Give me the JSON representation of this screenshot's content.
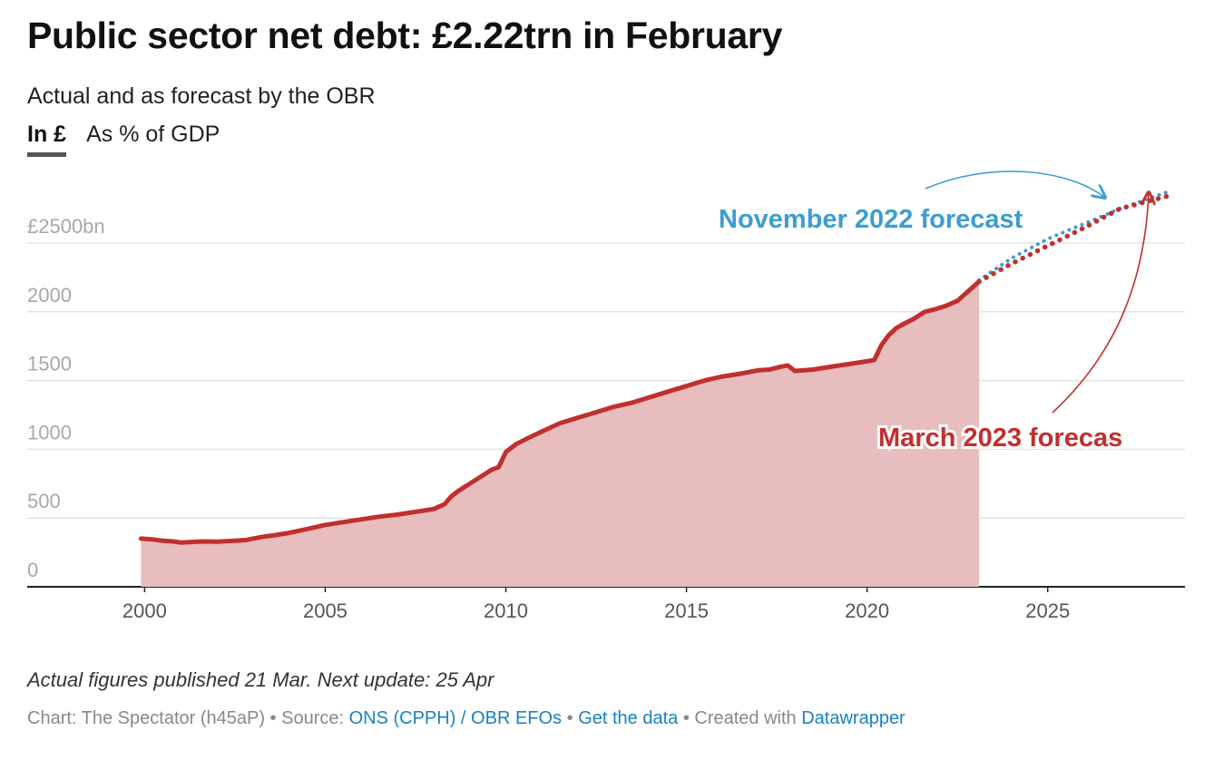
{
  "header": {
    "title": "Public sector net debt: £2.22trn in February",
    "subtitle": "Actual and as forecast by the OBR",
    "tabs": [
      {
        "label": "In £",
        "active": true
      },
      {
        "label": "As % of GDP",
        "active": false
      }
    ]
  },
  "footer": {
    "note": "Actual figures published 21 Mar. Next update: 25 Apr",
    "credit_prefix": "Chart: The Spectator (h45aP) • Source: ",
    "source_link": "ONS (CPPH) / OBR EFOs",
    "separator": " • ",
    "data_link": "Get the data",
    "created_prefix": " • Created with ",
    "tool_link": "Datawrapper"
  },
  "chart_data": {
    "type": "area",
    "title": "Public sector net debt: £2.22trn in February",
    "subtitle": "Actual and as forecast by the OBR",
    "xlabel": "",
    "ylabel": "",
    "xlim": [
      1996.75,
      2028.8
    ],
    "ylim": [
      0,
      2500
    ],
    "y_ticks": [
      {
        "value": 0,
        "label": "0"
      },
      {
        "value": 500,
        "label": "500"
      },
      {
        "value": 1000,
        "label": "1000"
      },
      {
        "value": 1500,
        "label": "1500"
      },
      {
        "value": 2000,
        "label": "2000"
      },
      {
        "value": 2500,
        "label": "£2500bn"
      }
    ],
    "x_ticks": [
      {
        "value": 2000,
        "label": "2000"
      },
      {
        "value": 2005,
        "label": "2005"
      },
      {
        "value": 2010,
        "label": "2010"
      },
      {
        "value": 2015,
        "label": "2015"
      },
      {
        "value": 2020,
        "label": "2020"
      },
      {
        "value": 2025,
        "label": "2025"
      }
    ],
    "grid": true,
    "colors": {
      "actual": "#c0302e",
      "area": "#e7bdbd",
      "november_forecast": "#3d9dd1",
      "march_forecast": "#c0302e",
      "grid": "#e3e3e3",
      "axis": "#222222"
    },
    "series": [
      {
        "style": "solid-area",
        "x": [
          1999.9,
          2000.2,
          2000.5,
          2000.8,
          2001.0,
          2001.3,
          2001.6,
          2002.0,
          2002.4,
          2002.8,
          2003.0,
          2003.3,
          2003.6,
          2004.0,
          2004.5,
          2005.0,
          2005.5,
          2006.0,
          2006.5,
          2007.0,
          2007.5,
          2008.0,
          2008.3,
          2008.5,
          2008.7,
          2009.0,
          2009.3,
          2009.6,
          2009.8,
          2010.0,
          2010.3,
          2010.6,
          2011.0,
          2011.5,
          2012.0,
          2012.5,
          2013.0,
          2013.5,
          2014.0,
          2014.5,
          2015.0,
          2015.5,
          2016.0,
          2016.5,
          2017.0,
          2017.3,
          2017.6,
          2017.8,
          2018.0,
          2018.5,
          2019.0,
          2019.5,
          2020.0,
          2020.2,
          2020.4,
          2020.6,
          2020.8,
          2021.0,
          2021.3,
          2021.6,
          2021.9,
          2022.2,
          2022.5,
          2022.8,
          2023.1
        ],
        "values": [
          350,
          345,
          335,
          330,
          322,
          326,
          330,
          328,
          333,
          340,
          350,
          365,
          375,
          392,
          420,
          450,
          470,
          490,
          510,
          525,
          545,
          565,
          600,
          660,
          700,
          750,
          800,
          850,
          870,
          980,
          1040,
          1080,
          1130,
          1190,
          1230,
          1270,
          1310,
          1340,
          1380,
          1420,
          1460,
          1500,
          1530,
          1550,
          1575,
          1580,
          1600,
          1610,
          1570,
          1580,
          1600,
          1620,
          1640,
          1650,
          1760,
          1830,
          1880,
          1910,
          1950,
          2000,
          2020,
          2045,
          2080,
          2150,
          2220
        ]
      },
      {
        "name": "November 2022 forecast",
        "style": "dotted",
        "x": [
          2023.1,
          2024.0,
          2025.0,
          2026.0,
          2027.0,
          2028.3
        ],
        "values": [
          2230,
          2390,
          2530,
          2640,
          2750,
          2870
        ]
      },
      {
        "name": "March 2023 forecast",
        "style": "dotted",
        "x": [
          2023.1,
          2024.0,
          2025.0,
          2026.0,
          2027.0,
          2028.3
        ],
        "values": [
          2220,
          2350,
          2480,
          2610,
          2750,
          2840
        ]
      }
    ],
    "annotations": [
      {
        "text": "November 2022 forecast",
        "color": "#3d9dd1"
      },
      {
        "text": "March 2023 forecas",
        "color": "#c0302e"
      }
    ]
  }
}
